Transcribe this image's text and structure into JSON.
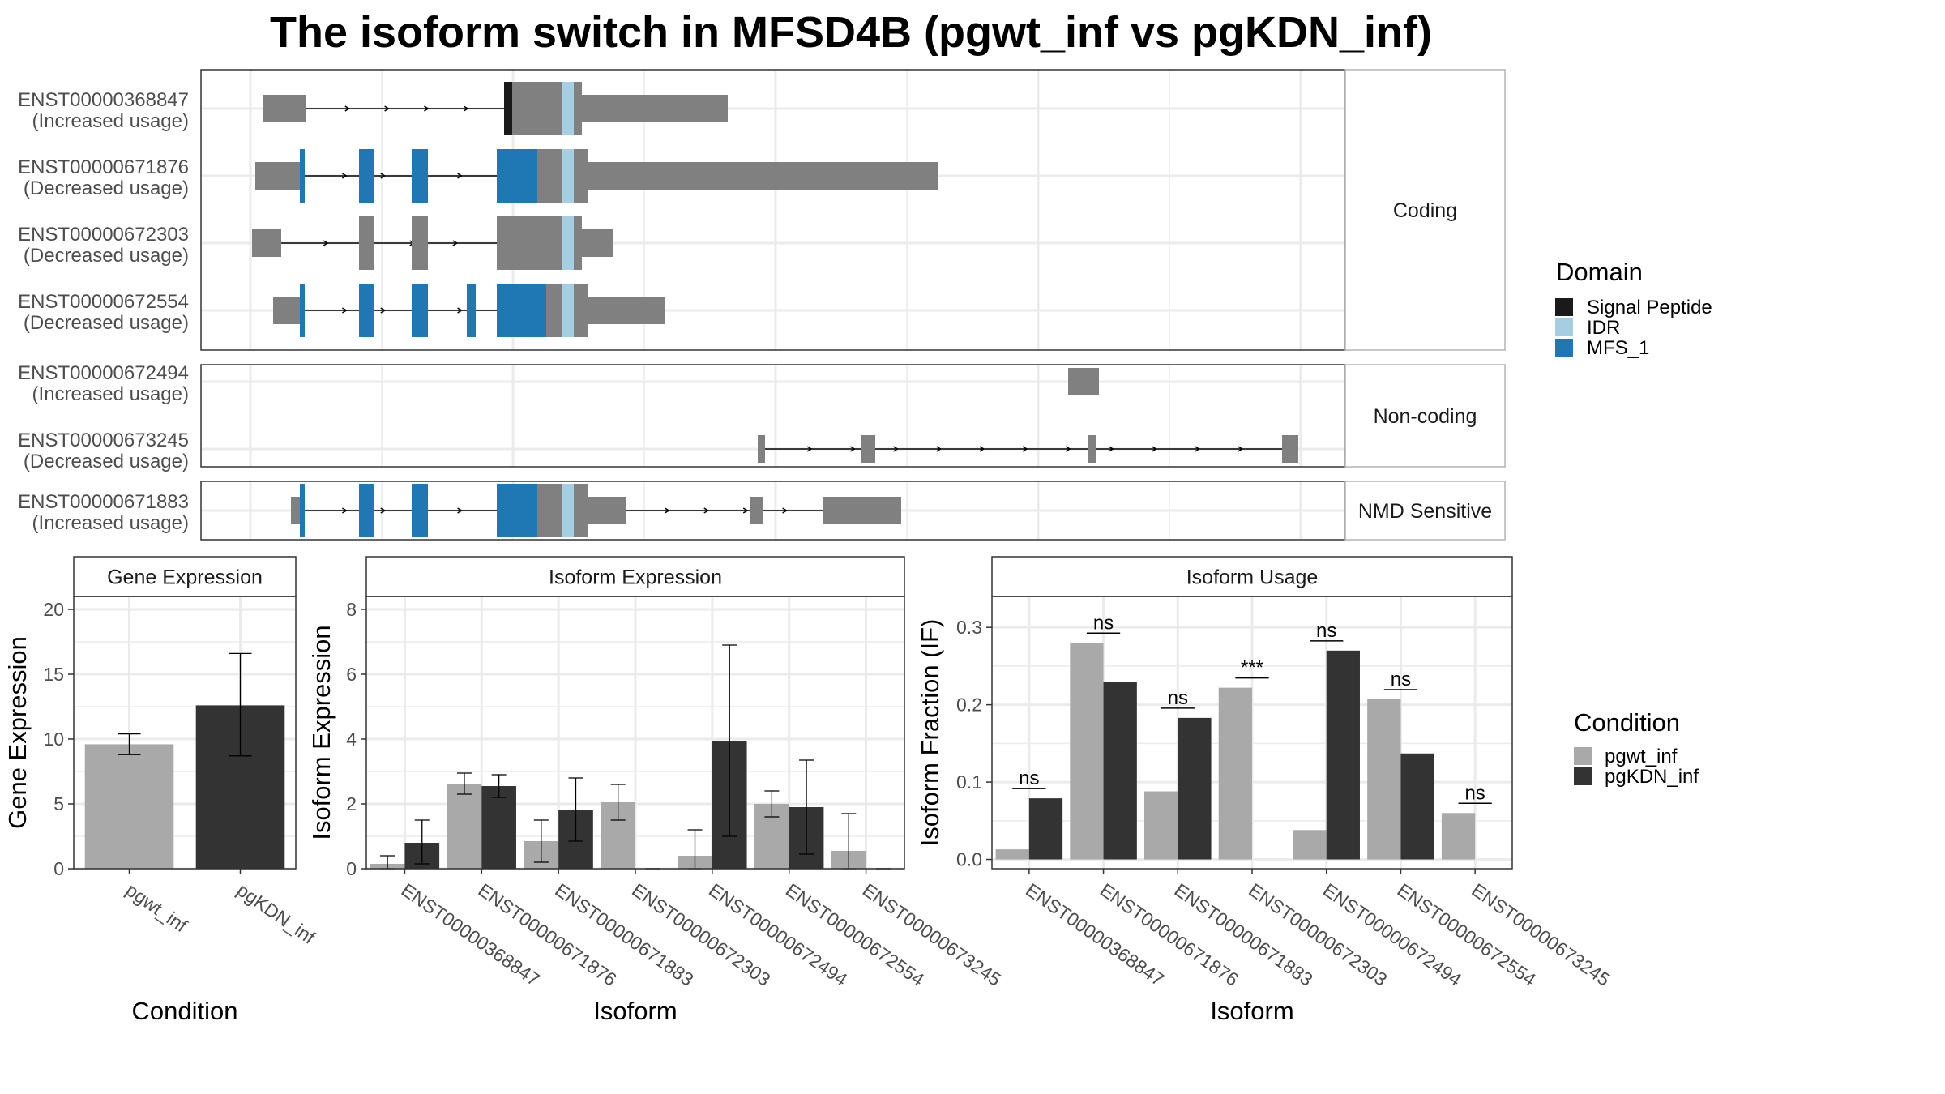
{
  "title": "The isoform switch in MFSD4B (pgwt_inf vs pgKDN_inf)",
  "colors": {
    "exon": "#808080",
    "signal_peptide": "#1a1a1a",
    "idr": "#a6cee3",
    "mfs_1": "#1f78b4",
    "pgwt_inf": "#a9a9a9",
    "pgKDN_inf": "#333333",
    "grid": "#ebebeb",
    "strip_bg": "#ffffff"
  },
  "domain_legend": {
    "title": "Domain",
    "items": [
      {
        "label": "Signal Peptide",
        "color": "#1a1a1a"
      },
      {
        "label": "IDR",
        "color": "#a6cee3"
      },
      {
        "label": "MFS_1",
        "color": "#1f78b4"
      }
    ]
  },
  "condition_legend": {
    "title": "Condition",
    "items": [
      {
        "label": "pgwt_inf",
        "color": "#a9a9a9"
      },
      {
        "label": "pgKDN_inf",
        "color": "#333333"
      }
    ]
  },
  "structure": {
    "panels": [
      {
        "strip": "Coding",
        "rows": [
          {
            "id": "ENST00000368847",
            "usage": "(Increased usage)"
          },
          {
            "id": "ENST00000671876",
            "usage": "(Decreased usage)"
          },
          {
            "id": "ENST00000672303",
            "usage": "(Decreased usage)"
          },
          {
            "id": "ENST00000672554",
            "usage": "(Decreased usage)"
          }
        ]
      },
      {
        "strip": "Non-coding",
        "rows": [
          {
            "id": "ENST00000672494",
            "usage": "(Increased usage)"
          },
          {
            "id": "ENST00000673245",
            "usage": "(Decreased usage)"
          }
        ]
      },
      {
        "strip": "NMD Sensitive",
        "rows": [
          {
            "id": "ENST00000671883",
            "usage": "(Increased usage)"
          }
        ]
      }
    ]
  },
  "chart_data": [
    {
      "type": "bar",
      "title": "Gene Expression",
      "xlabel": "Condition",
      "ylabel": "Gene Expression",
      "categories": [
        "pgwt_inf",
        "pgKDN_inf"
      ],
      "values": [
        9.6,
        12.6
      ],
      "error_low": [
        8.8,
        8.7
      ],
      "error_high": [
        10.4,
        16.6
      ],
      "ylim": [
        0,
        21
      ],
      "yticks": [
        0,
        5,
        10,
        15,
        20
      ]
    },
    {
      "type": "bar",
      "title": "Isoform Expression",
      "xlabel": "Isoform",
      "ylabel": "Isoform Expression",
      "categories": [
        "ENST00000368847",
        "ENST00000671876",
        "ENST00000671883",
        "ENST00000672303",
        "ENST00000672494",
        "ENST00000672554",
        "ENST00000673245"
      ],
      "ylim": [
        0,
        8.4
      ],
      "yticks": [
        0,
        2,
        4,
        6,
        8
      ],
      "series": [
        {
          "name": "pgwt_inf",
          "values": [
            0.15,
            2.6,
            0.85,
            2.05,
            0.4,
            2.0,
            0.55
          ],
          "error_low": [
            0.0,
            2.3,
            0.2,
            1.5,
            0.0,
            1.6,
            0.0
          ],
          "error_high": [
            0.4,
            2.95,
            1.5,
            2.6,
            1.2,
            2.4,
            1.7
          ]
        },
        {
          "name": "pgKDN_inf",
          "values": [
            0.8,
            2.55,
            1.8,
            0.0,
            3.95,
            1.9,
            0.0
          ],
          "error_low": [
            0.15,
            2.2,
            0.85,
            0.0,
            1.0,
            0.45,
            0.0
          ],
          "error_high": [
            1.5,
            2.9,
            2.8,
            0.0,
            6.9,
            3.35,
            0.0
          ]
        }
      ]
    },
    {
      "type": "bar",
      "title": "Isoform Usage",
      "xlabel": "Isoform",
      "ylabel": "Isoform Fraction (IF)",
      "categories": [
        "ENST00000368847",
        "ENST00000671876",
        "ENST00000671883",
        "ENST00000672303",
        "ENST00000672494",
        "ENST00000672554",
        "ENST00000673245"
      ],
      "ylim": [
        -0.012,
        0.34
      ],
      "yticks": [
        0.0,
        0.1,
        0.2,
        0.3
      ],
      "series": [
        {
          "name": "pgwt_inf",
          "values": [
            0.013,
            0.28,
            0.088,
            0.222,
            0.038,
            0.207,
            0.06
          ]
        },
        {
          "name": "pgKDN_inf",
          "values": [
            0.079,
            0.229,
            0.183,
            0.0,
            0.27,
            0.137,
            0.0
          ]
        }
      ],
      "significance": [
        "ns",
        "ns",
        "ns",
        "***",
        "ns",
        "ns",
        "ns"
      ]
    }
  ]
}
